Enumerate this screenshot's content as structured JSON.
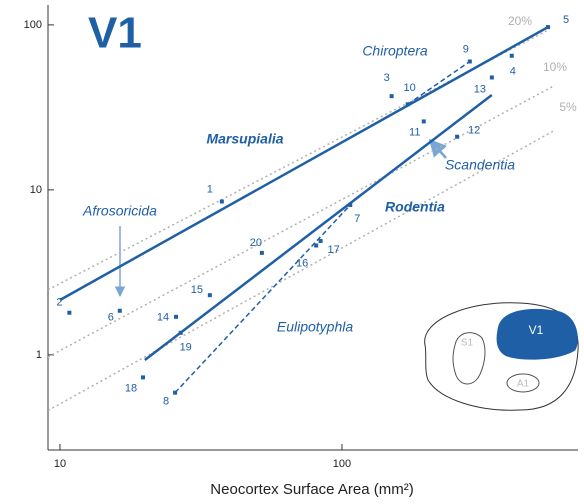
{
  "chart_data": {
    "type": "scatter",
    "title": "V1",
    "x_label": "Neocortex Surface Area (mm²)",
    "xlim": [
      9.07,
      687
    ],
    "ylim": [
      0.265,
      132
    ],
    "log_x": true,
    "log_y": true,
    "xticks": [
      10,
      100
    ],
    "yticks": [
      1,
      10,
      100
    ],
    "color": "#1f5fa6",
    "reference_color": "#b0b0b0",
    "points": {
      "labels": [
        "1",
        "2",
        "3",
        "4",
        "5",
        "6",
        "7",
        "8",
        "9",
        "10",
        "11",
        "12",
        "13",
        "14",
        "15",
        "16",
        "17",
        "18",
        "19",
        "20"
      ],
      "x": [
        37.5,
        10.8,
        150,
        400,
        538,
        16.3,
        107,
        25.6,
        284,
        171,
        195,
        256,
        340,
        25.8,
        34,
        81,
        84,
        19.7,
        26.8,
        52
      ],
      "y": [
        8.5,
        1.8,
        37,
        65,
        97,
        1.85,
        8.1,
        0.59,
        60,
        33,
        26,
        21,
        48,
        1.7,
        2.3,
        4.6,
        4.9,
        0.73,
        1.36,
        4.15
      ]
    },
    "fits": [
      {
        "name": "Marsupialia",
        "x": [
          10,
          538
        ],
        "y": [
          2.15,
          97
        ],
        "dashed": false
      },
      {
        "name": "Rodentia",
        "x": [
          20,
          340
        ],
        "y": [
          0.93,
          37.6
        ],
        "dashed": false
      },
      {
        "name": "Eulipotyphla",
        "x": [
          25.6,
          107
        ],
        "y": [
          0.59,
          8.1
        ],
        "dashed": true
      },
      {
        "name": "Chiroptera",
        "x": [
          171,
          284
        ],
        "y": [
          33,
          60
        ],
        "dashed": true
      }
    ],
    "reference_lines": [
      {
        "name": "20%",
        "x": [
          9.07,
          538
        ],
        "y": [
          2.48,
          93
        ]
      },
      {
        "name": "10%",
        "x": [
          9.07,
          569
        ],
        "y": [
          0.97,
          43
        ]
      },
      {
        "name": "5%",
        "x": [
          9.07,
          569
        ],
        "y": [
          0.46,
          23
        ]
      }
    ],
    "annotations": [
      "Afrosoricida",
      "Scandentia"
    ]
  },
  "inset": {
    "labels": [
      "V1",
      "S1",
      "A1"
    ]
  }
}
